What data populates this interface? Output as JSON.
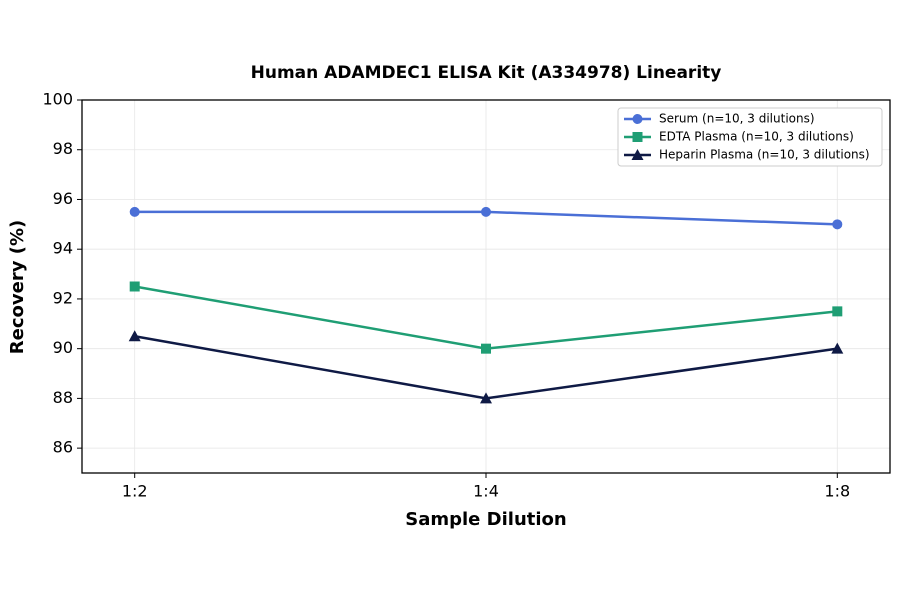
{
  "chart_data": {
    "type": "line",
    "title": "Human ADAMDEC1 ELISA Kit (A334978) Linearity",
    "x_label": "Sample Dilution",
    "y_label": "Recovery (%)",
    "categories": [
      "1:2",
      "1:4",
      "1:8"
    ],
    "series": [
      {
        "name": "Serum (n=10, 3 dilutions)",
        "color": "#4a6fd6",
        "marker": "circle",
        "values": [
          95.5,
          95.5,
          95.0
        ]
      },
      {
        "name": "EDTA Plasma (n=10, 3 dilutions)",
        "color": "#1f9e74",
        "marker": "square",
        "values": [
          92.5,
          90.0,
          91.5
        ]
      },
      {
        "name": "Heparin Plasma (n=10, 3 dilutions)",
        "color": "#0f1a45",
        "marker": "triangle",
        "values": [
          90.5,
          88.0,
          90.0
        ]
      }
    ],
    "ylim": [
      85,
      100
    ],
    "yticks": [
      86,
      88,
      90,
      92,
      94,
      96,
      98,
      100
    ],
    "grid": true,
    "legend": "upper-right"
  }
}
